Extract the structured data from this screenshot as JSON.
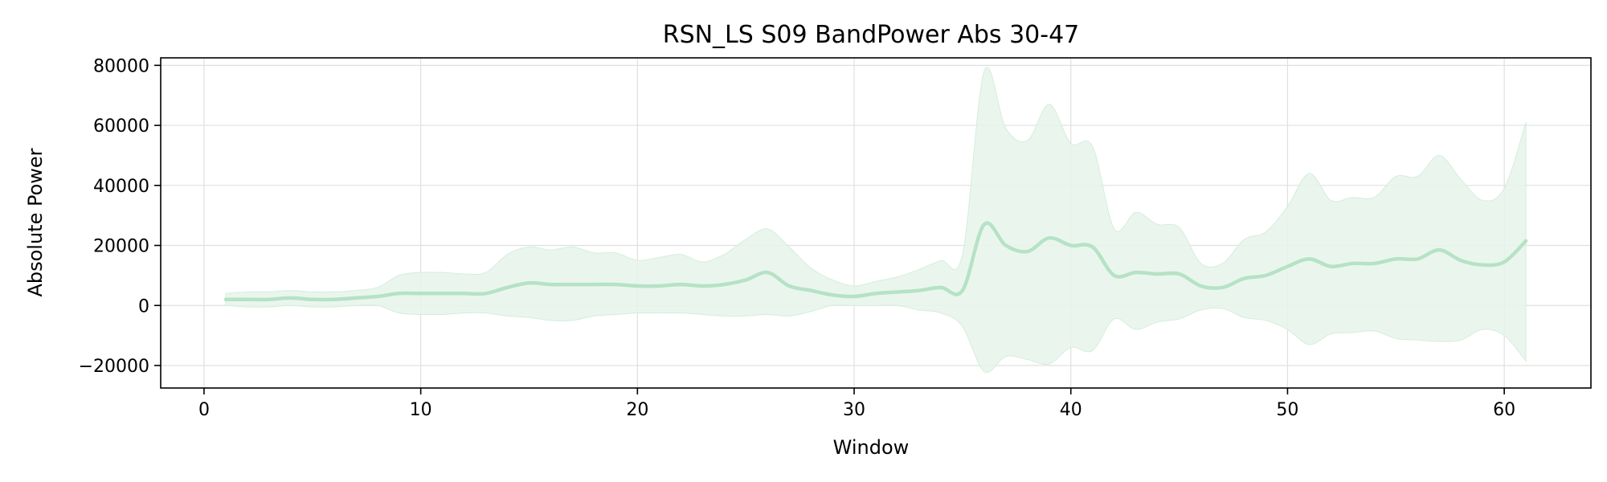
{
  "chart_data": {
    "type": "line",
    "title": "RSN_LS S09 BandPower Abs 30-47",
    "xlabel": "Window",
    "ylabel": "Absolute Power",
    "xlim": [
      -2,
      64
    ],
    "ylim": [
      -27500,
      82500
    ],
    "x_ticks": [
      0,
      10,
      20,
      30,
      40,
      50,
      60
    ],
    "y_ticks": [
      -20000,
      0,
      20000,
      40000,
      60000,
      80000
    ],
    "x_tick_labels": [
      "0",
      "10",
      "20",
      "30",
      "40",
      "50",
      "60"
    ],
    "y_tick_labels": [
      "−20000",
      "0",
      "20000",
      "40000",
      "60000",
      "80000"
    ],
    "grid": true,
    "legend": "none",
    "colors": {
      "line": "#b6e2c6",
      "band": "#e6f4ea",
      "grid": "#e0e0e0",
      "axis": "#000000"
    },
    "series": [
      {
        "x": [
          1,
          2,
          3,
          4,
          5,
          6,
          7,
          8,
          9,
          10,
          11,
          12,
          13,
          14,
          15,
          16,
          17,
          18,
          19,
          20,
          21,
          22,
          23,
          24,
          25,
          26,
          27,
          28,
          29,
          30,
          31,
          32,
          33,
          34,
          35,
          36,
          37,
          38,
          39,
          40,
          41,
          42,
          43,
          44,
          45,
          46,
          47,
          48,
          49,
          50,
          51,
          52,
          53,
          54,
          55,
          56,
          57,
          58,
          59,
          60,
          61
        ],
        "mean": [
          2000,
          2000,
          2000,
          2500,
          2000,
          2000,
          2500,
          3000,
          4000,
          4000,
          4000,
          4000,
          4000,
          6000,
          7500,
          7000,
          7000,
          7000,
          7000,
          6500,
          6500,
          7000,
          6500,
          7000,
          8500,
          11000,
          6500,
          5000,
          3500,
          3000,
          4000,
          4500,
          5000,
          6000,
          5000,
          27000,
          20000,
          18000,
          22500,
          20000,
          19500,
          10000,
          11000,
          10500,
          10500,
          6500,
          6000,
          9000,
          10000,
          13000,
          15500,
          13000,
          14000,
          14000,
          15500,
          15500,
          18500,
          15000,
          13500,
          14500,
          21500
        ],
        "upper": [
          4000,
          4500,
          4500,
          5000,
          4500,
          4500,
          5000,
          6000,
          10000,
          11000,
          11000,
          10500,
          11000,
          17000,
          19500,
          18500,
          19500,
          17500,
          17500,
          15000,
          16000,
          17000,
          14500,
          17000,
          22000,
          25500,
          19500,
          12500,
          8500,
          6500,
          8000,
          9500,
          12000,
          15000,
          17000,
          78000,
          59000,
          55000,
          67000,
          54000,
          53000,
          25500,
          31000,
          27000,
          26000,
          14000,
          14000,
          22000,
          24500,
          33000,
          44000,
          35000,
          36000,
          36000,
          43000,
          43000,
          50000,
          42000,
          35000,
          39000,
          61000
        ],
        "lower": [
          0,
          -500,
          -500,
          0,
          -500,
          -500,
          0,
          0,
          -2500,
          -3000,
          -3000,
          -2500,
          -2500,
          -3500,
          -4000,
          -5000,
          -5000,
          -3500,
          -3000,
          -2500,
          -2500,
          -2500,
          -3000,
          -3500,
          -3500,
          -3000,
          -3500,
          -2000,
          0,
          0,
          0,
          0,
          -1500,
          -2500,
          -7000,
          -22000,
          -17000,
          -18000,
          -19500,
          -14000,
          -15000,
          -4500,
          -8000,
          -5500,
          -4500,
          -1500,
          -1000,
          -4000,
          -5000,
          -8000,
          -13000,
          -9500,
          -9000,
          -8500,
          -11000,
          -11500,
          -12000,
          -11500,
          -8000,
          -10000,
          -18500
        ]
      }
    ]
  }
}
